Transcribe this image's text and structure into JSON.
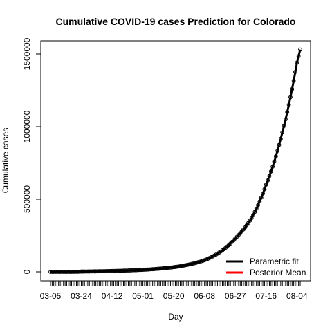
{
  "chart_data": {
    "type": "line",
    "title": "Cumulative COVID-19 cases Prediction for Colorado",
    "xlabel": "Day",
    "ylabel": "Cumulative cases",
    "x_tick_labels": [
      "03-05",
      "03-24",
      "04-12",
      "05-01",
      "05-20",
      "06-08",
      "06-27",
      "07-16",
      "08-04"
    ],
    "y_tick_labels": [
      "0",
      "500000",
      "1000000",
      "1500000"
    ],
    "y_ticks": [
      0,
      500000,
      1000000,
      1500000
    ],
    "ylim": [
      0,
      1580000
    ],
    "x_start": "03-05",
    "x_end": "08-06",
    "grid": false,
    "legend_position": "bottom-right",
    "observed_marker": "circle",
    "series": [
      {
        "name": "Parametric fit",
        "color": "#000000",
        "x": [
          "03-05",
          "03-24",
          "04-12",
          "05-01",
          "05-20",
          "06-08",
          "06-18",
          "06-27",
          "07-07",
          "07-16",
          "07-26",
          "08-04",
          "08-06"
        ],
        "values": [
          0,
          2000,
          6000,
          14000,
          32000,
          80000,
          140000,
          230000,
          370000,
          600000,
          960000,
          1440000,
          1530000
        ]
      },
      {
        "name": "Posterior Mean",
        "color": "#ff0000",
        "x": [],
        "values": []
      }
    ]
  }
}
